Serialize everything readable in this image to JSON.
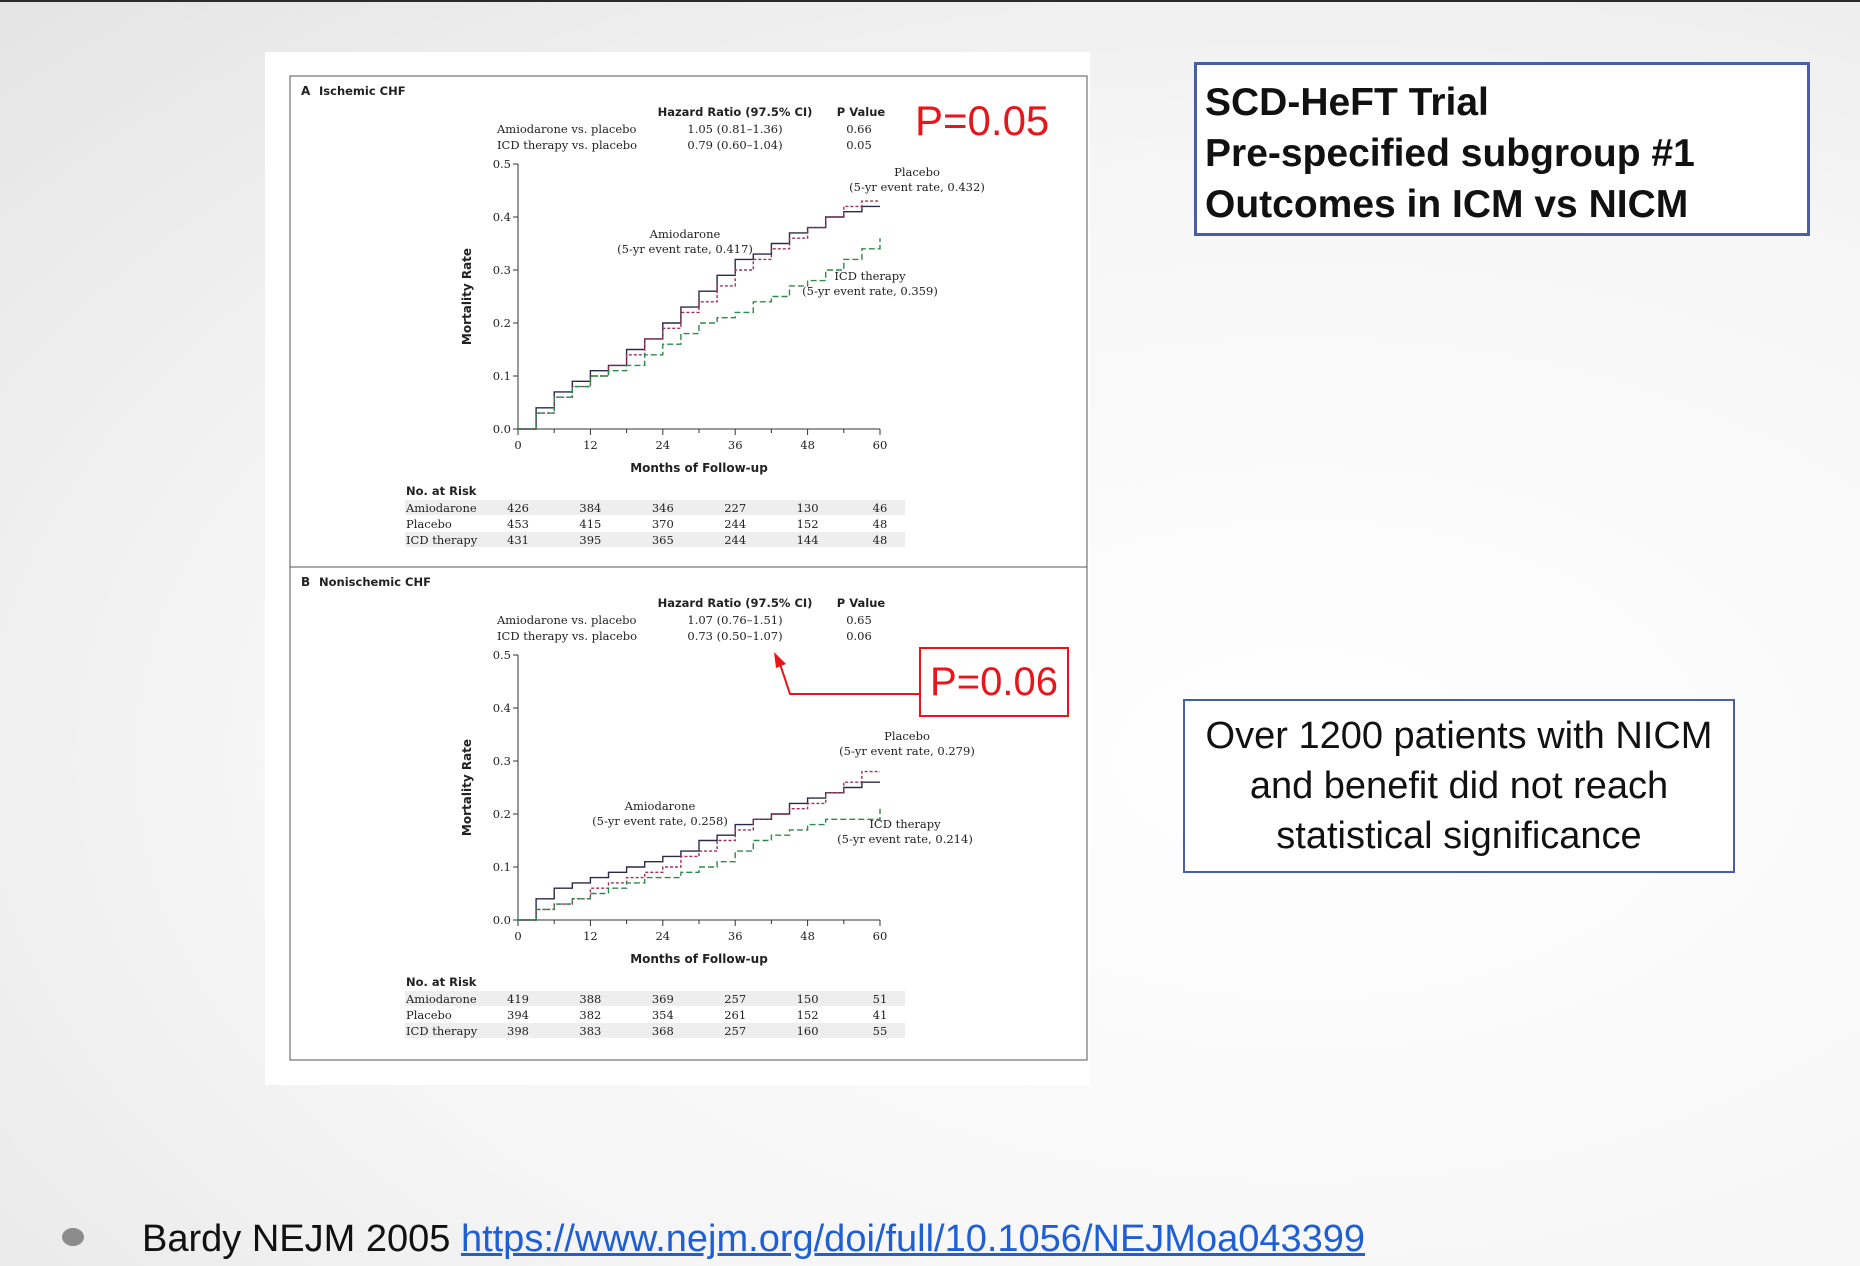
{
  "slide": {
    "title_lines": [
      "SCD-HeFT Trial",
      "Pre-specified subgroup #1",
      "Outcomes in ICM vs NICM"
    ],
    "note": "Over 1200 patients with NICM and benefit did not reach statistical significance",
    "callout_a": "P=0.05",
    "callout_b": "P=0.06",
    "citation_text": "Bardy NEJM 2005",
    "citation_link": "https://www.nejm.org/doi/full/10.1056/NEJMoa043399",
    "colors": {
      "accent_red": "#e8151b",
      "box_border": "#4a5ea8",
      "link": "#1f5fd6"
    }
  },
  "chart_data": [
    {
      "type": "line",
      "panel_letter": "A",
      "title": "Ischemic CHF",
      "xlabel": "Months of Follow-up",
      "ylabel": "Mortality Rate",
      "xlim": [
        0,
        60
      ],
      "ylim": [
        0,
        0.5
      ],
      "xticks": [
        0,
        12,
        24,
        36,
        48,
        60
      ],
      "yticks": [
        "0.0",
        "0.1",
        "0.2",
        "0.3",
        "0.4",
        "0.5"
      ],
      "hr_header": {
        "hr": "Hazard Ratio (97.5% CI)",
        "p": "P Value"
      },
      "hr_rows": [
        {
          "label": "Amiodarone vs. placebo",
          "hr": "1.05 (0.81–1.36)",
          "p": "0.66"
        },
        {
          "label": "ICD therapy vs. placebo",
          "hr": "0.79 (0.60–1.04)",
          "p": "0.05"
        }
      ],
      "series": [
        {
          "name": "Amiodarone",
          "annotation": "(5-yr event rate, 0.417)",
          "color": "#2a2a4a",
          "dash": "",
          "x": [
            0,
            3,
            6,
            9,
            12,
            15,
            18,
            21,
            24,
            27,
            30,
            33,
            36,
            39,
            42,
            45,
            48,
            51,
            54,
            57,
            60
          ],
          "y": [
            0,
            0.04,
            0.07,
            0.09,
            0.11,
            0.12,
            0.15,
            0.17,
            0.2,
            0.23,
            0.26,
            0.29,
            0.32,
            0.33,
            0.35,
            0.37,
            0.38,
            0.4,
            0.41,
            0.42,
            0.42
          ]
        },
        {
          "name": "Placebo",
          "annotation": "(5-yr event rate, 0.432)",
          "color": "#a0305a",
          "dash": "3,2",
          "x": [
            0,
            3,
            6,
            9,
            12,
            15,
            18,
            21,
            24,
            27,
            30,
            33,
            36,
            39,
            42,
            45,
            48,
            51,
            54,
            57,
            60
          ],
          "y": [
            0,
            0.03,
            0.06,
            0.08,
            0.1,
            0.12,
            0.14,
            0.17,
            0.19,
            0.22,
            0.24,
            0.27,
            0.3,
            0.32,
            0.34,
            0.36,
            0.38,
            0.4,
            0.42,
            0.43,
            0.43
          ]
        },
        {
          "name": "ICD therapy",
          "annotation": "(5-yr event rate, 0.359)",
          "color": "#2e8a4a",
          "dash": "6,3",
          "x": [
            0,
            3,
            6,
            9,
            12,
            15,
            18,
            21,
            24,
            27,
            30,
            33,
            36,
            39,
            42,
            45,
            48,
            51,
            54,
            57,
            60
          ],
          "y": [
            0,
            0.03,
            0.06,
            0.08,
            0.1,
            0.11,
            0.12,
            0.14,
            0.16,
            0.18,
            0.2,
            0.21,
            0.22,
            0.24,
            0.25,
            0.27,
            0.28,
            0.3,
            0.32,
            0.34,
            0.36
          ]
        }
      ],
      "risk_table": {
        "header": "No. at Risk",
        "rows": [
          {
            "label": "Amiodarone",
            "values": [
              "426",
              "384",
              "346",
              "227",
              "130",
              "46"
            ]
          },
          {
            "label": "Placebo",
            "values": [
              "453",
              "415",
              "370",
              "244",
              "152",
              "48"
            ]
          },
          {
            "label": "ICD therapy",
            "values": [
              "431",
              "395",
              "365",
              "244",
              "144",
              "48"
            ]
          }
        ]
      }
    },
    {
      "type": "line",
      "panel_letter": "B",
      "title": "Nonischemic CHF",
      "xlabel": "Months of Follow-up",
      "ylabel": "Mortality Rate",
      "xlim": [
        0,
        60
      ],
      "ylim": [
        0,
        0.5
      ],
      "xticks": [
        0,
        12,
        24,
        36,
        48,
        60
      ],
      "yticks": [
        "0.0",
        "0.1",
        "0.2",
        "0.3",
        "0.4",
        "0.5"
      ],
      "hr_header": {
        "hr": "Hazard Ratio (97.5% CI)",
        "p": "P Value"
      },
      "hr_rows": [
        {
          "label": "Amiodarone vs. placebo",
          "hr": "1.07 (0.76–1.51)",
          "p": "0.65"
        },
        {
          "label": "ICD therapy vs. placebo",
          "hr": "0.73 (0.50–1.07)",
          "p": "0.06"
        }
      ],
      "series": [
        {
          "name": "Amiodarone",
          "annotation": "(5-yr event rate, 0.258)",
          "color": "#2a2a4a",
          "dash": "",
          "x": [
            0,
            3,
            6,
            9,
            12,
            15,
            18,
            21,
            24,
            27,
            30,
            33,
            36,
            39,
            42,
            45,
            48,
            51,
            54,
            57,
            60
          ],
          "y": [
            0,
            0.04,
            0.06,
            0.07,
            0.08,
            0.09,
            0.1,
            0.11,
            0.12,
            0.13,
            0.15,
            0.16,
            0.18,
            0.19,
            0.2,
            0.22,
            0.23,
            0.24,
            0.25,
            0.26,
            0.26
          ]
        },
        {
          "name": "Placebo",
          "annotation": "(5-yr event rate, 0.279)",
          "color": "#a0305a",
          "dash": "3,2",
          "x": [
            0,
            3,
            6,
            9,
            12,
            15,
            18,
            21,
            24,
            27,
            30,
            33,
            36,
            39,
            42,
            45,
            48,
            51,
            54,
            57,
            60
          ],
          "y": [
            0,
            0.02,
            0.03,
            0.04,
            0.06,
            0.07,
            0.08,
            0.09,
            0.1,
            0.12,
            0.13,
            0.15,
            0.17,
            0.19,
            0.2,
            0.21,
            0.22,
            0.24,
            0.26,
            0.28,
            0.28
          ]
        },
        {
          "name": "ICD therapy",
          "annotation": "(5-yr event rate, 0.214)",
          "color": "#2e8a4a",
          "dash": "6,3",
          "x": [
            0,
            3,
            6,
            9,
            12,
            15,
            18,
            21,
            24,
            27,
            30,
            33,
            36,
            39,
            42,
            45,
            48,
            51,
            54,
            57,
            60
          ],
          "y": [
            0,
            0.02,
            0.03,
            0.04,
            0.05,
            0.06,
            0.07,
            0.08,
            0.08,
            0.09,
            0.1,
            0.11,
            0.13,
            0.15,
            0.16,
            0.17,
            0.18,
            0.19,
            0.19,
            0.19,
            0.21
          ]
        }
      ],
      "risk_table": {
        "header": "No. at Risk",
        "rows": [
          {
            "label": "Amiodarone",
            "values": [
              "419",
              "388",
              "369",
              "257",
              "150",
              "51"
            ]
          },
          {
            "label": "Placebo",
            "values": [
              "394",
              "382",
              "354",
              "261",
              "152",
              "41"
            ]
          },
          {
            "label": "ICD therapy",
            "values": [
              "398",
              "383",
              "368",
              "257",
              "160",
              "55"
            ]
          }
        ]
      }
    }
  ]
}
